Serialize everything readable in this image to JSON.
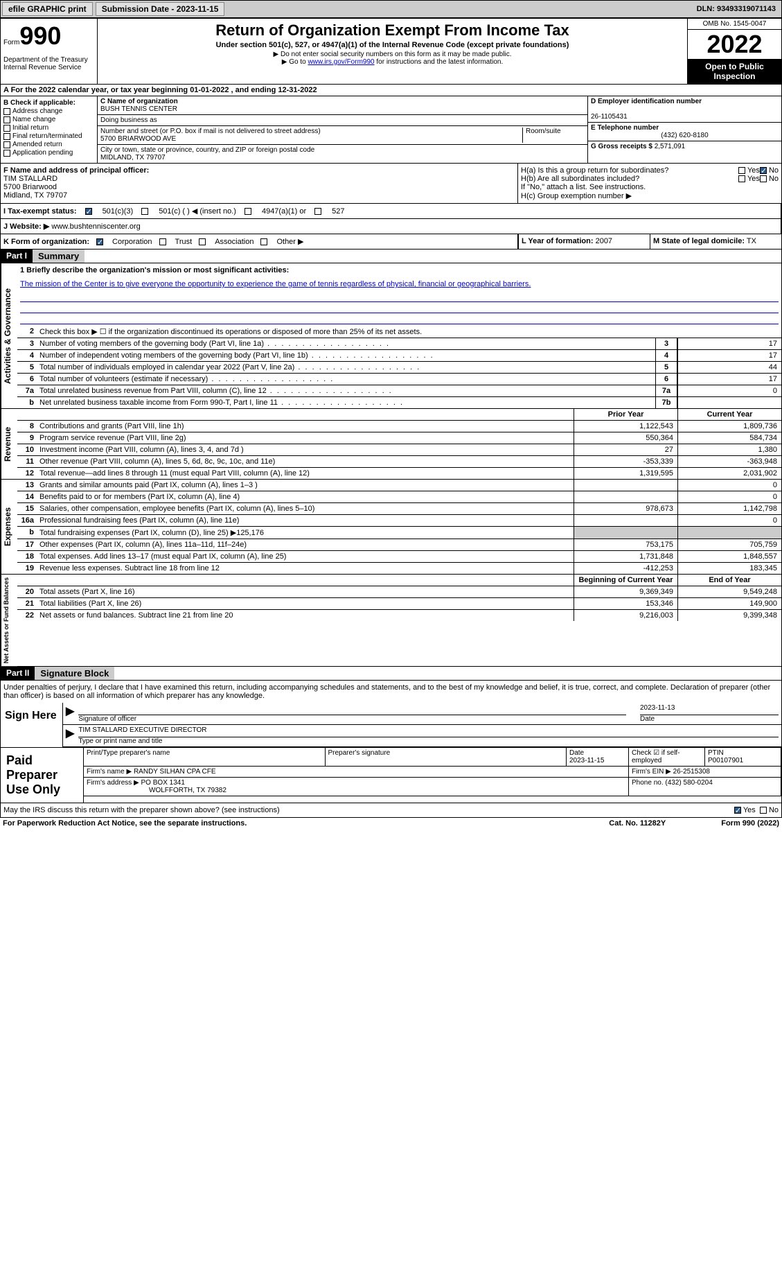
{
  "topbar": {
    "efile": "efile GRAPHIC print",
    "subdate_label": "Submission Date - 2023-11-15",
    "dln": "DLN: 93493319071143"
  },
  "header": {
    "form_word": "Form",
    "form_num": "990",
    "title": "Return of Organization Exempt From Income Tax",
    "sub1": "Under section 501(c), 527, or 4947(a)(1) of the Internal Revenue Code (except private foundations)",
    "sub2": "▶ Do not enter social security numbers on this form as it may be made public.",
    "sub3_pre": "▶ Go to ",
    "sub3_link": "www.irs.gov/Form990",
    "sub3_post": " for instructions and the latest information.",
    "dept": "Department of the Treasury\nInternal Revenue Service",
    "omb": "OMB No. 1545-0047",
    "year": "2022",
    "inspection": "Open to Public Inspection"
  },
  "lineA": "A For the 2022 calendar year, or tax year beginning 01-01-2022    , and ending 12-31-2022",
  "B": {
    "label": "B Check if applicable:",
    "opts": [
      "Address change",
      "Name change",
      "Initial return",
      "Final return/terminated",
      "Amended return",
      "Application pending"
    ]
  },
  "C": {
    "name_label": "C Name of organization",
    "name": "BUSH TENNIS CENTER",
    "dba": "Doing business as",
    "addr_label": "Number and street (or P.O. box if mail is not delivered to street address)",
    "room": "Room/suite",
    "addr": "5700 BRIARWOOD AVE",
    "city_label": "City or town, state or province, country, and ZIP or foreign postal code",
    "city": "MIDLAND, TX  79707"
  },
  "D": {
    "label": "D Employer identification number",
    "val": "26-1105431"
  },
  "E": {
    "label": "E Telephone number",
    "val": "(432) 620-8180"
  },
  "G": {
    "label": "G Gross receipts $",
    "val": "2,571,091"
  },
  "F": {
    "label": "F Name and address of principal officer:",
    "name": "TIM STALLARD",
    "addr1": "5700 Briarwood",
    "addr2": "Midland, TX  79707"
  },
  "H": {
    "a": "H(a)  Is this a group return for subordinates?",
    "b": "H(b)  Are all subordinates included?",
    "b_note": "If \"No,\" attach a list. See instructions.",
    "c": "H(c)  Group exemption number ▶",
    "yes": "Yes",
    "no": "No"
  },
  "I": {
    "label": "I     Tax-exempt status:",
    "opt1": "501(c)(3)",
    "opt2": "501(c) (  ) ◀ (insert no.)",
    "opt3": "4947(a)(1) or",
    "opt4": "527"
  },
  "J": {
    "label": "J   Website: ▶",
    "val": "www.bushtenniscenter.org"
  },
  "K": {
    "label": "K Form of organization:",
    "corp": "Corporation",
    "trust": "Trust",
    "assoc": "Association",
    "other": "Other ▶"
  },
  "L": {
    "label": "L Year of formation:",
    "val": "2007"
  },
  "M": {
    "label": "M State of legal domicile:",
    "val": "TX"
  },
  "part1": {
    "hdr": "Part I",
    "title": "Summary"
  },
  "mission": {
    "q": "1  Briefly describe the organization's mission or most significant activities:",
    "text": "The mission of the Center is to give everyone the opportunity to experience the game of tennis regardless of physical, financial or geographical barriers."
  },
  "line2": "Check this box ▶ ☐ if the organization discontinued its operations or disposed of more than 25% of its net assets.",
  "gov_rows": [
    {
      "n": "3",
      "d": "Number of voting members of the governing body (Part VI, line 1a)",
      "b": "3",
      "v": "17"
    },
    {
      "n": "4",
      "d": "Number of independent voting members of the governing body (Part VI, line 1b)",
      "b": "4",
      "v": "17"
    },
    {
      "n": "5",
      "d": "Total number of individuals employed in calendar year 2022 (Part V, line 2a)",
      "b": "5",
      "v": "44"
    },
    {
      "n": "6",
      "d": "Total number of volunteers (estimate if necessary)",
      "b": "6",
      "v": "17"
    },
    {
      "n": "7a",
      "d": "Total unrelated business revenue from Part VIII, column (C), line 12",
      "b": "7a",
      "v": "0"
    },
    {
      "n": "b",
      "d": "Net unrelated business taxable income from Form 990-T, Part I, line 11",
      "b": "7b",
      "v": ""
    }
  ],
  "rev_hdr": {
    "py": "Prior Year",
    "cy": "Current Year"
  },
  "rev_rows": [
    {
      "n": "8",
      "d": "Contributions and grants (Part VIII, line 1h)",
      "py": "1,122,543",
      "cy": "1,809,736"
    },
    {
      "n": "9",
      "d": "Program service revenue (Part VIII, line 2g)",
      "py": "550,364",
      "cy": "584,734"
    },
    {
      "n": "10",
      "d": "Investment income (Part VIII, column (A), lines 3, 4, and 7d )",
      "py": "27",
      "cy": "1,380"
    },
    {
      "n": "11",
      "d": "Other revenue (Part VIII, column (A), lines 5, 6d, 8c, 9c, 10c, and 11e)",
      "py": "-353,339",
      "cy": "-363,948"
    },
    {
      "n": "12",
      "d": "Total revenue—add lines 8 through 11 (must equal Part VIII, column (A), line 12)",
      "py": "1,319,595",
      "cy": "2,031,902"
    }
  ],
  "exp_rows": [
    {
      "n": "13",
      "d": "Grants and similar amounts paid (Part IX, column (A), lines 1–3 )",
      "py": "",
      "cy": "0"
    },
    {
      "n": "14",
      "d": "Benefits paid to or for members (Part IX, column (A), line 4)",
      "py": "",
      "cy": "0"
    },
    {
      "n": "15",
      "d": "Salaries, other compensation, employee benefits (Part IX, column (A), lines 5–10)",
      "py": "978,673",
      "cy": "1,142,798"
    },
    {
      "n": "16a",
      "d": "Professional fundraising fees (Part IX, column (A), line 11e)",
      "py": "",
      "cy": "0"
    },
    {
      "n": "b",
      "d": "Total fundraising expenses (Part IX, column (D), line 25) ▶125,176",
      "py": "grey",
      "cy": "grey"
    },
    {
      "n": "17",
      "d": "Other expenses (Part IX, column (A), lines 11a–11d, 11f–24e)",
      "py": "753,175",
      "cy": "705,759"
    },
    {
      "n": "18",
      "d": "Total expenses. Add lines 13–17 (must equal Part IX, column (A), line 25)",
      "py": "1,731,848",
      "cy": "1,848,557"
    },
    {
      "n": "19",
      "d": "Revenue less expenses. Subtract line 18 from line 12",
      "py": "-412,253",
      "cy": "183,345"
    }
  ],
  "na_hdr": {
    "py": "Beginning of Current Year",
    "cy": "End of Year"
  },
  "na_rows": [
    {
      "n": "20",
      "d": "Total assets (Part X, line 16)",
      "py": "9,369,349",
      "cy": "9,549,248"
    },
    {
      "n": "21",
      "d": "Total liabilities (Part X, line 26)",
      "py": "153,346",
      "cy": "149,900"
    },
    {
      "n": "22",
      "d": "Net assets or fund balances. Subtract line 21 from line 20",
      "py": "9,216,003",
      "cy": "9,399,348"
    }
  ],
  "part2": {
    "hdr": "Part II",
    "title": "Signature Block"
  },
  "sig": {
    "decl": "Under penalties of perjury, I declare that I have examined this return, including accompanying schedules and statements, and to the best of my knowledge and belief, it is true, correct, and complete. Declaration of preparer (other than officer) is based on all information of which preparer has any knowledge.",
    "sign_here": "Sign Here",
    "sig_of": "Signature of officer",
    "date": "Date",
    "date_val": "2023-11-13",
    "name": "TIM STALLARD  EXECUTIVE DIRECTOR",
    "name_label": "Type or print name and title"
  },
  "prep": {
    "label": "Paid Preparer Use Only",
    "h_name": "Print/Type preparer's name",
    "h_sig": "Preparer's signature",
    "h_date": "Date",
    "h_date_v": "2023-11-15",
    "h_check": "Check ☑ if self-employed",
    "h_ptin": "PTIN",
    "ptin": "P00107901",
    "firm_name_l": "Firm's name     ▶",
    "firm_name": "RANDY SILHAN CPA CFE",
    "firm_ein_l": "Firm's EIN ▶",
    "firm_ein": "26-2515308",
    "firm_addr_l": "Firm's address ▶",
    "firm_addr": "PO BOX 1341",
    "firm_city": "WOLFFORTH, TX  79382",
    "phone_l": "Phone no.",
    "phone": "(432) 580-0204"
  },
  "discuss": "May the IRS discuss this return with the preparer shown above? (see instructions)",
  "footer": {
    "left": "For Paperwork Reduction Act Notice, see the separate instructions.",
    "mid": "Cat. No. 11282Y",
    "right": "Form 990 (2022)"
  },
  "side": {
    "gov": "Activities & Governance",
    "rev": "Revenue",
    "exp": "Expenses",
    "na": "Net Assets or Fund Balances"
  }
}
